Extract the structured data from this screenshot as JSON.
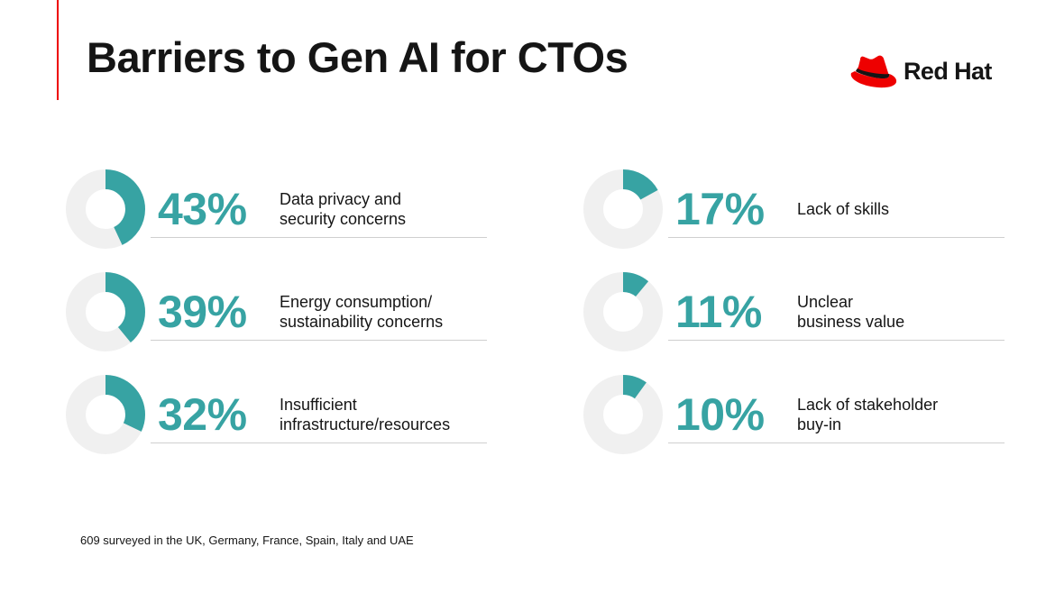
{
  "title": "Barriers to Gen AI for CTOs",
  "logo": {
    "text": "Red Hat",
    "brand_color": "#ee0000"
  },
  "colors": {
    "accent": "#37a3a3",
    "track": "#f0f0f0",
    "divider": "#cfcfcf"
  },
  "chart_data": {
    "type": "donut",
    "title": "Barriers to Gen AI for CTOs",
    "unit": "%",
    "items": [
      {
        "label": "Data privacy and\nsecurity concerns",
        "value": 43,
        "display": "43%"
      },
      {
        "label": "Energy consumption/\nsustainability concerns",
        "value": 39,
        "display": "39%"
      },
      {
        "label": "Insufficient\ninfrastructure/resources",
        "value": 32,
        "display": "32%"
      },
      {
        "label": "Lack of skills",
        "value": 17,
        "display": "17%"
      },
      {
        "label": "Unclear\nbusiness value",
        "value": 11,
        "display": "11%"
      },
      {
        "label": "Lack of stakeholder\nbuy-in",
        "value": 10,
        "display": "10%"
      }
    ]
  },
  "footnote": "609 surveyed in the UK, Germany, France, Spain, Italy and UAE"
}
